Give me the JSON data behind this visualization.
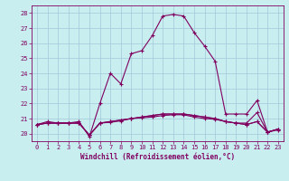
{
  "xlabel": "Windchill (Refroidissement éolien,°C)",
  "background_color": "#c8eef0",
  "grid_color": "#a0c8d8",
  "line_color": "#800060",
  "xlim": [
    -0.5,
    23.5
  ],
  "ylim": [
    19.5,
    28.5
  ],
  "yticks": [
    20,
    21,
    22,
    23,
    24,
    25,
    26,
    27,
    28
  ],
  "xticks": [
    0,
    1,
    2,
    3,
    4,
    5,
    6,
    7,
    8,
    9,
    10,
    11,
    12,
    13,
    14,
    15,
    16,
    17,
    18,
    19,
    20,
    21,
    22,
    23
  ],
  "series1": [
    20.6,
    20.8,
    20.7,
    20.7,
    20.8,
    19.8,
    22.0,
    24.0,
    23.3,
    25.3,
    25.5,
    26.5,
    27.8,
    27.9,
    27.8,
    26.7,
    25.8,
    24.8,
    21.3,
    21.3,
    21.3,
    22.2,
    20.1,
    20.3
  ],
  "series2": [
    20.6,
    20.7,
    20.7,
    20.7,
    20.7,
    19.9,
    20.7,
    20.8,
    20.9,
    21.0,
    21.1,
    21.2,
    21.3,
    21.3,
    21.3,
    21.2,
    21.1,
    21.0,
    20.8,
    20.7,
    20.7,
    21.4,
    20.1,
    20.3
  ],
  "series3": [
    20.6,
    20.7,
    20.7,
    20.7,
    20.7,
    19.9,
    20.7,
    20.8,
    20.9,
    21.0,
    21.1,
    21.2,
    21.3,
    21.3,
    21.3,
    21.2,
    21.1,
    21.0,
    20.8,
    20.7,
    20.6,
    20.8,
    20.1,
    20.3
  ],
  "series4": [
    20.6,
    20.7,
    20.7,
    20.7,
    20.7,
    19.9,
    20.7,
    20.75,
    20.85,
    21.0,
    21.05,
    21.1,
    21.2,
    21.25,
    21.25,
    21.1,
    21.0,
    20.95,
    20.8,
    20.7,
    20.6,
    20.8,
    20.1,
    20.25
  ]
}
